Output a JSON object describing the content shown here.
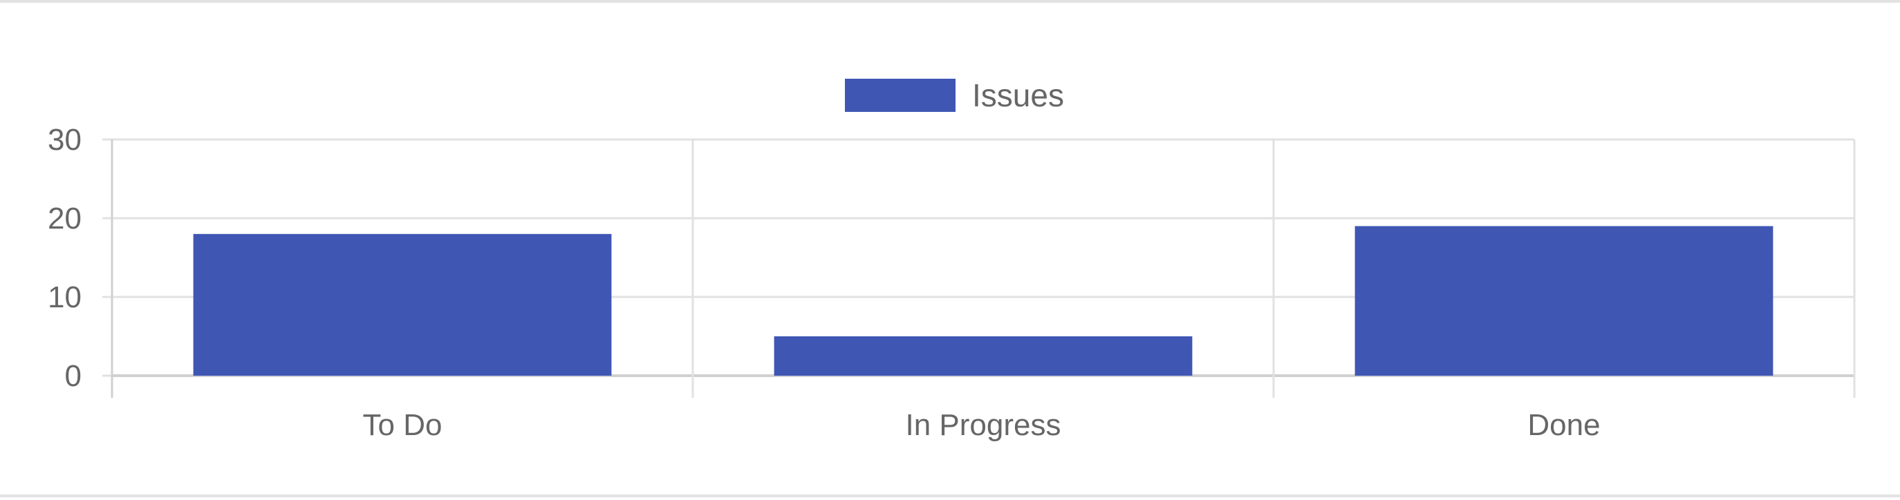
{
  "chart_data": {
    "type": "bar",
    "categories": [
      "To Do",
      "In Progress",
      "Done"
    ],
    "series": [
      {
        "name": "Issues",
        "values": [
          18,
          5,
          19
        ],
        "color": "#3f56b3"
      }
    ],
    "title": "",
    "xlabel": "",
    "ylabel": "",
    "ylim": [
      0,
      30
    ],
    "y_ticks": [
      0,
      10,
      20,
      30
    ],
    "grid": true,
    "legend_position": "top-center",
    "colors": {
      "grid": "#e1e1e1",
      "axis": "#d0d0d0",
      "text": "#666666"
    }
  }
}
